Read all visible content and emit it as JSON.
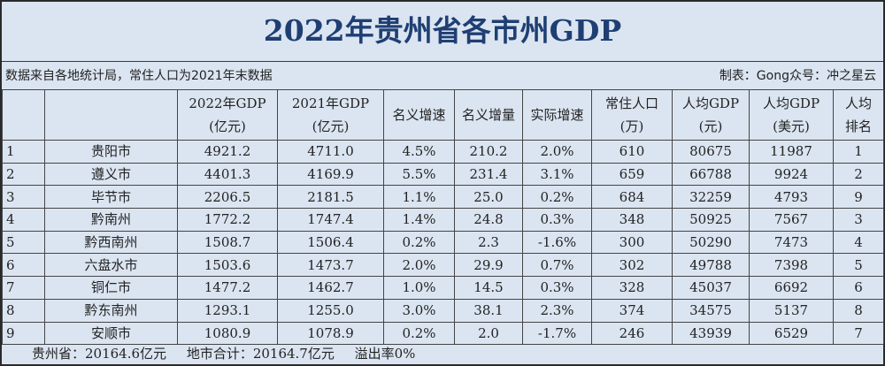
{
  "title": "2022年贵州省各市州GDP",
  "note_left": "数据来自各地统计局，常住人口为2021年末数据",
  "note_right": "制表：Gong众号：冲之星云",
  "headers": [
    {
      "l1": "",
      "l2": ""
    },
    {
      "l1": "",
      "l2": ""
    },
    {
      "l1": "2022年GDP",
      "l2": "(亿元)"
    },
    {
      "l1": "2021年GDP",
      "l2": "(亿元)"
    },
    {
      "l1": "名义增速",
      "l2": ""
    },
    {
      "l1": "名义增量",
      "l2": ""
    },
    {
      "l1": "实际增速",
      "l2": ""
    },
    {
      "l1": "常住人口",
      "l2": "(万)"
    },
    {
      "l1": "人均GDP",
      "l2": "(元)"
    },
    {
      "l1": "人均GDP",
      "l2": "(美元)"
    },
    {
      "l1": "人均",
      "l2": "排名"
    }
  ],
  "rows": [
    {
      "no": "1",
      "city": "贵阳市",
      "gdp2022": "4921.2",
      "gdp2021": "4711.0",
      "nominal_growth": "4.5%",
      "nominal_increase": "210.2",
      "real_growth": "2.0%",
      "population": "610",
      "gdp_per_capita_cny": "80675",
      "gdp_per_capita_usd": "11987",
      "rank": "1"
    },
    {
      "no": "2",
      "city": "遵义市",
      "gdp2022": "4401.3",
      "gdp2021": "4169.9",
      "nominal_growth": "5.5%",
      "nominal_increase": "231.4",
      "real_growth": "3.1%",
      "population": "659",
      "gdp_per_capita_cny": "66788",
      "gdp_per_capita_usd": "9924",
      "rank": "2"
    },
    {
      "no": "3",
      "city": "毕节市",
      "gdp2022": "2206.5",
      "gdp2021": "2181.5",
      "nominal_growth": "1.1%",
      "nominal_increase": "25.0",
      "real_growth": "0.2%",
      "population": "684",
      "gdp_per_capita_cny": "32259",
      "gdp_per_capita_usd": "4793",
      "rank": "9"
    },
    {
      "no": "4",
      "city": "黔南州",
      "gdp2022": "1772.2",
      "gdp2021": "1747.4",
      "nominal_growth": "1.4%",
      "nominal_increase": "24.8",
      "real_growth": "0.3%",
      "population": "348",
      "gdp_per_capita_cny": "50925",
      "gdp_per_capita_usd": "7567",
      "rank": "3"
    },
    {
      "no": "5",
      "city": "黔西南州",
      "gdp2022": "1508.7",
      "gdp2021": "1506.4",
      "nominal_growth": "0.2%",
      "nominal_increase": "2.3",
      "real_growth": "-1.6%",
      "population": "300",
      "gdp_per_capita_cny": "50290",
      "gdp_per_capita_usd": "7473",
      "rank": "4"
    },
    {
      "no": "6",
      "city": "六盘水市",
      "gdp2022": "1503.6",
      "gdp2021": "1473.7",
      "nominal_growth": "2.0%",
      "nominal_increase": "29.9",
      "real_growth": "0.7%",
      "population": "302",
      "gdp_per_capita_cny": "49788",
      "gdp_per_capita_usd": "7398",
      "rank": "5"
    },
    {
      "no": "7",
      "city": "铜仁市",
      "gdp2022": "1477.2",
      "gdp2021": "1462.7",
      "nominal_growth": "1.0%",
      "nominal_increase": "14.5",
      "real_growth": "0.3%",
      "population": "328",
      "gdp_per_capita_cny": "45037",
      "gdp_per_capita_usd": "6692",
      "rank": "6"
    },
    {
      "no": "8",
      "city": "黔东南州",
      "gdp2022": "1293.1",
      "gdp2021": "1255.0",
      "nominal_growth": "3.0%",
      "nominal_increase": "38.1",
      "real_growth": "2.3%",
      "population": "374",
      "gdp_per_capita_cny": "34575",
      "gdp_per_capita_usd": "5137",
      "rank": "8"
    },
    {
      "no": "9",
      "city": "安顺市",
      "gdp2022": "1080.9",
      "gdp2021": "1078.9",
      "nominal_growth": "0.2%",
      "nominal_increase": "2.0",
      "real_growth": "-1.7%",
      "population": "246",
      "gdp_per_capita_cny": "43939",
      "gdp_per_capita_usd": "6529",
      "rank": "7"
    }
  ],
  "footer": {
    "province_total": "贵州省：20164.6亿元",
    "city_sum": "地市合计：20164.7亿元",
    "overflow_rate": "溢出率0%"
  },
  "colors": {
    "background": "#dbe5f1",
    "title": "#1f3f73",
    "border": "#444444"
  }
}
